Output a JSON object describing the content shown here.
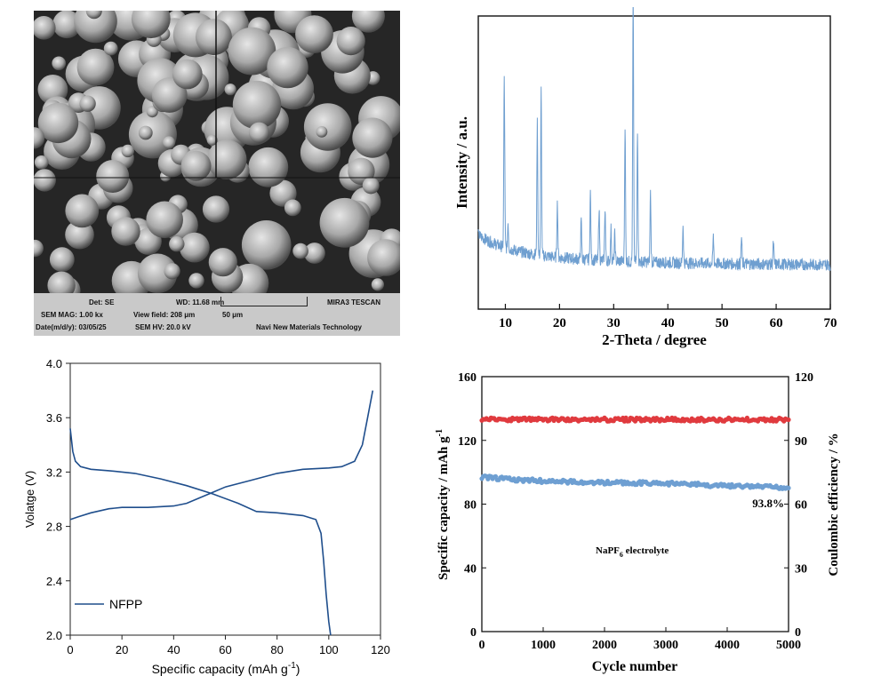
{
  "sem": {
    "det": "Det: SE",
    "wd": "WD: 11.68 mm",
    "brand": "MIRA3 TESCAN",
    "mag": "SEM MAG: 1.00 kx",
    "view_field": "View field: 208 μm",
    "scale": "50 μm",
    "date": "Date(m/d/y): 03/05/25",
    "hv": "SEM HV: 20.0 kV",
    "company": "Navi New Materials Technology"
  },
  "chart_data": [
    {
      "id": "xrd",
      "type": "line",
      "xlabel": "2-Theta / degree",
      "ylabel": "Intensity / a.u.",
      "xlim": [
        5,
        70
      ],
      "xticks": [
        10,
        20,
        30,
        40,
        50,
        60,
        70
      ],
      "color": "#6f9fd0",
      "background_noise": true,
      "peaks": [
        {
          "x": 9.8,
          "y": 0.64
        },
        {
          "x": 10.5,
          "y": 0.1
        },
        {
          "x": 15.9,
          "y": 0.5
        },
        {
          "x": 16.6,
          "y": 0.62
        },
        {
          "x": 19.6,
          "y": 0.2
        },
        {
          "x": 24.0,
          "y": 0.14
        },
        {
          "x": 25.7,
          "y": 0.25
        },
        {
          "x": 27.3,
          "y": 0.2
        },
        {
          "x": 28.4,
          "y": 0.2
        },
        {
          "x": 29.5,
          "y": 0.12
        },
        {
          "x": 30.2,
          "y": 0.1
        },
        {
          "x": 32.1,
          "y": 0.51
        },
        {
          "x": 33.6,
          "y": 1.0
        },
        {
          "x": 34.4,
          "y": 0.5
        },
        {
          "x": 36.8,
          "y": 0.26
        },
        {
          "x": 42.8,
          "y": 0.14
        },
        {
          "x": 48.4,
          "y": 0.1
        },
        {
          "x": 53.6,
          "y": 0.1
        },
        {
          "x": 59.5,
          "y": 0.08
        }
      ]
    },
    {
      "id": "charge-discharge",
      "type": "line",
      "xlabel": "Specific capacity (mAh g",
      "xlabel_sup": "-1",
      "xlabel_end": ")",
      "ylabel": "Volatge (V)",
      "xlim": [
        0,
        120
      ],
      "ylim": [
        2.0,
        4.0
      ],
      "xticks": [
        0,
        20,
        40,
        60,
        80,
        100,
        120
      ],
      "yticks": [
        "2.0",
        "2.4",
        "2.8",
        "3.2",
        "3.6",
        "4.0"
      ],
      "legend": "NFPP",
      "legend_position": "bottom-left",
      "color": "#1f4e8c",
      "series": [
        {
          "role": "charge",
          "x": [
            0,
            3,
            8,
            15,
            20,
            30,
            40,
            45,
            50,
            55,
            60,
            70,
            80,
            90,
            100,
            105,
            110,
            113,
            115,
            117
          ],
          "y": [
            2.85,
            2.87,
            2.9,
            2.93,
            2.94,
            2.94,
            2.95,
            2.97,
            3.01,
            3.05,
            3.09,
            3.14,
            3.19,
            3.22,
            3.23,
            3.24,
            3.28,
            3.4,
            3.6,
            3.8
          ]
        },
        {
          "role": "discharge",
          "x": [
            0,
            1,
            2,
            4,
            8,
            15,
            25,
            35,
            45,
            55,
            65,
            72,
            80,
            90,
            95,
            97,
            98,
            99,
            100,
            100.7
          ],
          "y": [
            3.52,
            3.35,
            3.28,
            3.24,
            3.22,
            3.21,
            3.19,
            3.15,
            3.1,
            3.04,
            2.97,
            2.91,
            2.9,
            2.88,
            2.85,
            2.75,
            2.55,
            2.3,
            2.1,
            2.0
          ]
        }
      ]
    },
    {
      "id": "cycling",
      "type": "scatter",
      "xlabel": "Cycle number",
      "ylabel_left": "Specific capacity / mAh g",
      "ylabel_left_sup": "-1",
      "ylabel_right": "Coulombic efficiency / %",
      "xlim": [
        0,
        5000
      ],
      "ylim_left": [
        0,
        160
      ],
      "ylim_right": [
        0,
        120
      ],
      "xticks": [
        0,
        1000,
        2000,
        3000,
        4000,
        5000
      ],
      "yticks_left": [
        0,
        40,
        80,
        120,
        160
      ],
      "yticks_right": [
        0,
        30,
        60,
        90,
        120
      ],
      "annotation_retention": "93.8%",
      "annotation_electrolyte": "NaPF",
      "annotation_electrolyte_sub": "6",
      "annotation_electrolyte_end": " electrolyte",
      "series": [
        {
          "role": "coulombic efficiency",
          "axis": "right",
          "color": "#e03a3e",
          "x": [
            0,
            5000
          ],
          "y": [
            99.8,
            99.8
          ]
        },
        {
          "role": "specific capacity",
          "axis": "left",
          "color": "#6e9fd2",
          "x": [
            0,
            500,
            1000,
            2000,
            3000,
            4000,
            5000
          ],
          "y": [
            97,
            95.5,
            94.5,
            93.5,
            93,
            91.5,
            90.5
          ]
        }
      ]
    }
  ]
}
